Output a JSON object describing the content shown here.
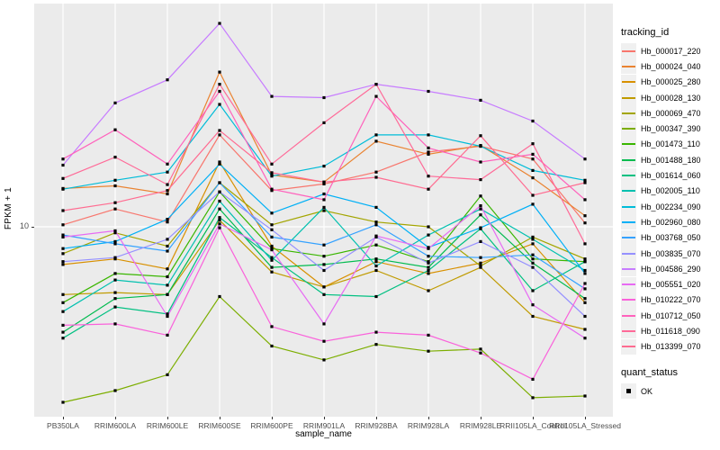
{
  "chart_data": {
    "type": "line",
    "x_type": "categorical",
    "y_scale": "log10",
    "xlabel": "sample_name",
    "ylabel": "FPKM + 1",
    "y_tick_label": "10",
    "y_ticks": [
      10
    ],
    "ylim_approx": [
      1.4,
      100
    ],
    "grid": true,
    "panel_bg": "#EBEBEB",
    "grid_color": "#FFFFFF",
    "legend_position": "right",
    "series_legend_title": "tracking_id",
    "point": {
      "shape": "filled-square",
      "color": "#000000",
      "legend_title": "quant_status",
      "legend_label": "OK"
    },
    "categories": [
      "PB350LA",
      "RRIM600LA",
      "RRIM600LE",
      "RRIM600SE",
      "RRIM600PE",
      "RRIM901LA",
      "RRIM928BA",
      "RRIM928LA",
      "RRIM928LE",
      "RRII105LA_Control",
      "RRII105LA_Stressed"
    ],
    "series": [
      {
        "name": "Hb_000017_220",
        "color": "#F8766D",
        "values": [
          10.2,
          12.0,
          10.5,
          25.6,
          14.5,
          15.5,
          17.5,
          21.5,
          22.8,
          20.0,
          10.4
        ]
      },
      {
        "name": "Hb_000024_040",
        "color": "#EA8331",
        "values": [
          14.8,
          15.2,
          14.0,
          48.7,
          17.0,
          15.8,
          24.0,
          21.0,
          23.0,
          16.5,
          11.2
        ]
      },
      {
        "name": "Hb_000025_280",
        "color": "#D89000",
        "values": [
          6.8,
          7.2,
          6.5,
          19.4,
          8.2,
          5.4,
          7.0,
          6.2,
          6.9,
          8.4,
          4.6
        ]
      },
      {
        "name": "Hb_000028_130",
        "color": "#C09B00",
        "values": [
          5.0,
          5.1,
          5.0,
          10.7,
          6.3,
          5.4,
          6.4,
          5.2,
          6.6,
          4.0,
          3.5
        ]
      },
      {
        "name": "Hb_000069_470",
        "color": "#A3A500",
        "values": [
          7.6,
          9.4,
          8.2,
          15.7,
          10.2,
          11.8,
          10.5,
          10.0,
          6.7,
          9.0,
          7.2
        ]
      },
      {
        "name": "Hb_000347_390",
        "color": "#7CAE00",
        "values": [
          1.66,
          1.87,
          2.2,
          4.9,
          2.95,
          2.56,
          3.0,
          2.8,
          2.86,
          1.74,
          1.77
        ]
      },
      {
        "name": "Hb_001473_110",
        "color": "#39B600",
        "values": [
          4.6,
          6.2,
          6.0,
          14.3,
          8.0,
          7.4,
          8.3,
          7.0,
          13.7,
          7.2,
          7.0
        ]
      },
      {
        "name": "Hb_001488_180",
        "color": "#00BB4E",
        "values": [
          3.4,
          4.8,
          5.0,
          12.0,
          6.6,
          6.8,
          7.2,
          6.6,
          11.3,
          6.9,
          4.8
        ]
      },
      {
        "name": "Hb_001614_060",
        "color": "#00C081",
        "values": [
          3.2,
          4.4,
          4.1,
          11.0,
          7.3,
          5.0,
          4.9,
          6.4,
          9.8,
          5.2,
          7.0
        ]
      },
      {
        "name": "Hb_002005_110",
        "color": "#00C0AF",
        "values": [
          4.2,
          5.8,
          5.5,
          13.0,
          7.1,
          12.2,
          6.7,
          9.2,
          12.0,
          8.8,
          6.4
        ]
      },
      {
        "name": "Hb_002234_090",
        "color": "#00BCD8",
        "values": [
          14.7,
          16.1,
          17.5,
          35.0,
          16.8,
          18.6,
          25.6,
          25.6,
          22.8,
          17.8,
          16.1
        ]
      },
      {
        "name": "Hb_002960_080",
        "color": "#00B0F6",
        "values": [
          8.0,
          8.6,
          10.8,
          19.0,
          11.5,
          14.0,
          12.2,
          8.1,
          9.9,
          12.6,
          6.2
        ]
      },
      {
        "name": "Hb_003768_050",
        "color": "#35A2FF",
        "values": [
          9.2,
          8.4,
          7.8,
          15.7,
          9.0,
          8.3,
          10.2,
          7.4,
          7.3,
          7.5,
          5.3
        ]
      },
      {
        "name": "Hb_003835_070",
        "color": "#9590FF",
        "values": [
          7.0,
          7.3,
          8.8,
          14.3,
          9.7,
          6.4,
          9.0,
          6.9,
          8.6,
          6.6,
          4.0
        ]
      },
      {
        "name": "Hb_004586_290",
        "color": "#C77CFF",
        "values": [
          18.8,
          35.5,
          45.0,
          80.2,
          38.0,
          37.5,
          43.0,
          40.0,
          36.5,
          29.5,
          20.0
        ]
      },
      {
        "name": "Hb_005551_020",
        "color": "#E76BF3",
        "values": [
          9.0,
          9.6,
          4.0,
          10.3,
          7.9,
          3.7,
          9.1,
          8.0,
          12.4,
          4.5,
          3.2
        ]
      },
      {
        "name": "Hb_010222_070",
        "color": "#FA62DB",
        "values": [
          3.65,
          3.7,
          3.3,
          9.9,
          3.6,
          3.1,
          3.4,
          3.3,
          2.75,
          2.1,
          5.6
        ]
      },
      {
        "name": "Hb_010712_050",
        "color": "#FF62BC",
        "values": [
          20.0,
          27.0,
          19.0,
          40.0,
          14.7,
          13.2,
          38.0,
          22.4,
          19.4,
          21.0,
          13.2
        ]
      },
      {
        "name": "Hb_011618_090",
        "color": "#FF6A98",
        "values": [
          16.4,
          20.4,
          15.4,
          43.0,
          19.0,
          29.0,
          43.0,
          16.8,
          16.2,
          23.4,
          8.4
        ]
      },
      {
        "name": "Hb_013399_070",
        "color": "#FF6C91",
        "values": [
          11.8,
          12.8,
          14.5,
          26.8,
          17.4,
          15.8,
          16.6,
          14.7,
          25.4,
          13.8,
          15.7
        ]
      }
    ]
  }
}
